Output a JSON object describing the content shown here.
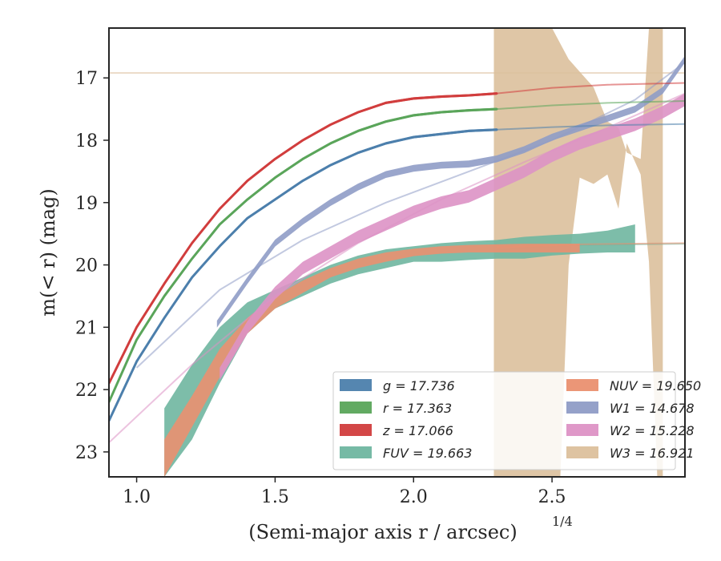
{
  "chart_data": {
    "type": "line",
    "xlabel": "(Semi-major axis r / arcsec)",
    "xlabel_power": "1/4",
    "ylabel": "m(< r) (mag)",
    "xlim": [
      0.9,
      2.98
    ],
    "ylim": [
      23.4,
      16.2
    ],
    "y_inverted": true,
    "x_ticks": [
      1.0,
      1.5,
      2.0,
      2.5
    ],
    "x_tick_labels": [
      "1.0",
      "1.5",
      "2.0",
      "2.5"
    ],
    "y_ticks": [
      17,
      18,
      19,
      20,
      21,
      22,
      23
    ],
    "y_tick_labels": [
      "17",
      "18",
      "19",
      "20",
      "21",
      "22",
      "23"
    ],
    "legend_position": "lower right",
    "series": [
      {
        "name": "g",
        "legend": "g = 17.736",
        "color": "#4c7fac",
        "lineWidth": 3,
        "bandHalf": 0.02,
        "points": [
          [
            0.9,
            22.5
          ],
          [
            1.0,
            21.55
          ],
          [
            1.1,
            20.85
          ],
          [
            1.2,
            20.2
          ],
          [
            1.3,
            19.7
          ],
          [
            1.4,
            19.25
          ],
          [
            1.5,
            18.95
          ],
          [
            1.6,
            18.65
          ],
          [
            1.7,
            18.4
          ],
          [
            1.8,
            18.2
          ],
          [
            1.9,
            18.05
          ],
          [
            2.0,
            17.95
          ],
          [
            2.1,
            17.9
          ],
          [
            2.2,
            17.85
          ],
          [
            2.3,
            17.83
          ]
        ],
        "fit": [
          [
            2.3,
            17.83
          ],
          [
            2.5,
            17.79
          ],
          [
            2.7,
            17.76
          ],
          [
            2.98,
            17.74
          ]
        ]
      },
      {
        "name": "r",
        "legend": "r = 17.363",
        "color": "#5aa55a",
        "lineWidth": 3,
        "bandHalf": 0.02,
        "points": [
          [
            0.9,
            22.2
          ],
          [
            1.0,
            21.2
          ],
          [
            1.1,
            20.5
          ],
          [
            1.2,
            19.9
          ],
          [
            1.3,
            19.35
          ],
          [
            1.4,
            18.95
          ],
          [
            1.5,
            18.6
          ],
          [
            1.6,
            18.3
          ],
          [
            1.7,
            18.05
          ],
          [
            1.8,
            17.85
          ],
          [
            1.9,
            17.7
          ],
          [
            2.0,
            17.6
          ],
          [
            2.1,
            17.55
          ],
          [
            2.2,
            17.52
          ],
          [
            2.3,
            17.5
          ]
        ],
        "fit": [
          [
            2.3,
            17.5
          ],
          [
            2.5,
            17.44
          ],
          [
            2.7,
            17.4
          ],
          [
            2.98,
            17.37
          ]
        ]
      },
      {
        "name": "z",
        "legend": "z = 17.066",
        "color": "#d13d3d",
        "lineWidth": 3,
        "bandHalf": 0.02,
        "points": [
          [
            0.9,
            21.9
          ],
          [
            1.0,
            21.0
          ],
          [
            1.1,
            20.3
          ],
          [
            1.2,
            19.65
          ],
          [
            1.3,
            19.1
          ],
          [
            1.4,
            18.65
          ],
          [
            1.5,
            18.3
          ],
          [
            1.6,
            18.0
          ],
          [
            1.7,
            17.75
          ],
          [
            1.8,
            17.55
          ],
          [
            1.9,
            17.4
          ],
          [
            2.0,
            17.33
          ],
          [
            2.1,
            17.3
          ],
          [
            2.2,
            17.28
          ],
          [
            2.3,
            17.25
          ]
        ],
        "fit": [
          [
            2.3,
            17.25
          ],
          [
            2.5,
            17.16
          ],
          [
            2.7,
            17.11
          ],
          [
            2.98,
            17.08
          ]
        ]
      },
      {
        "name": "FUV",
        "legend": "FUV = 19.663",
        "color": "#6fb6a0",
        "lineWidth": 0,
        "bandHalf": 0,
        "band": [
          [
            1.1,
            22.3,
            23.4
          ],
          [
            1.2,
            21.6,
            22.8
          ],
          [
            1.3,
            21.0,
            21.9
          ],
          [
            1.4,
            20.6,
            21.1
          ],
          [
            1.5,
            20.4,
            20.7
          ],
          [
            1.6,
            20.2,
            20.5
          ],
          [
            1.7,
            20.0,
            20.3
          ],
          [
            1.8,
            19.85,
            20.15
          ],
          [
            1.9,
            19.75,
            20.05
          ],
          [
            2.0,
            19.7,
            19.95
          ],
          [
            2.1,
            19.65,
            19.95
          ],
          [
            2.2,
            19.62,
            19.92
          ],
          [
            2.3,
            19.6,
            19.9
          ],
          [
            2.4,
            19.55,
            19.9
          ],
          [
            2.5,
            19.52,
            19.85
          ],
          [
            2.6,
            19.5,
            19.82
          ],
          [
            2.7,
            19.45,
            19.8
          ],
          [
            2.8,
            19.35,
            19.8
          ]
        ],
        "fit": [
          [
            2.3,
            19.75
          ],
          [
            2.6,
            19.68
          ],
          [
            2.98,
            19.66
          ]
        ]
      },
      {
        "name": "NUV",
        "legend": "NUV = 19.650",
        "color": "#ea9070",
        "lineWidth": 0,
        "bandHalf": 0,
        "band": [
          [
            1.1,
            22.8,
            23.4
          ],
          [
            1.2,
            22.1,
            22.6
          ],
          [
            1.3,
            21.35,
            21.8
          ],
          [
            1.4,
            20.85,
            21.1
          ],
          [
            1.5,
            20.5,
            20.7
          ],
          [
            1.6,
            20.25,
            20.45
          ],
          [
            1.7,
            20.05,
            20.2
          ],
          [
            1.8,
            19.9,
            20.05
          ],
          [
            1.9,
            19.8,
            19.95
          ],
          [
            2.0,
            19.74,
            19.86
          ],
          [
            2.1,
            19.7,
            19.82
          ],
          [
            2.2,
            19.68,
            19.8
          ],
          [
            2.3,
            19.67,
            19.8
          ],
          [
            2.4,
            19.66,
            19.8
          ],
          [
            2.5,
            19.66,
            19.8
          ],
          [
            2.6,
            19.66,
            19.8
          ]
        ],
        "fit": [
          [
            2.3,
            19.72
          ],
          [
            2.6,
            19.67
          ],
          [
            2.98,
            19.65
          ]
        ]
      },
      {
        "name": "W1",
        "legend": "W1 = 14.678",
        "color": "#8f9cc6",
        "lineWidth": 0,
        "bandHalf": 0.055,
        "points": [
          [
            1.29,
            20.95
          ],
          [
            1.4,
            20.25
          ],
          [
            1.5,
            19.65
          ],
          [
            1.6,
            19.3
          ],
          [
            1.7,
            19.0
          ],
          [
            1.8,
            18.75
          ],
          [
            1.9,
            18.55
          ],
          [
            2.0,
            18.45
          ],
          [
            2.1,
            18.4
          ],
          [
            2.2,
            18.38
          ],
          [
            2.3,
            18.3
          ],
          [
            2.4,
            18.15
          ],
          [
            2.5,
            17.95
          ],
          [
            2.6,
            17.8
          ],
          [
            2.7,
            17.65
          ],
          [
            2.8,
            17.5
          ],
          [
            2.9,
            17.2
          ],
          [
            2.98,
            16.7
          ]
        ],
        "fit": [
          [
            1.0,
            21.65
          ],
          [
            1.3,
            20.4
          ],
          [
            1.6,
            19.6
          ],
          [
            1.9,
            19.0
          ],
          [
            2.2,
            18.5
          ],
          [
            2.5,
            18.0
          ],
          [
            2.8,
            17.35
          ],
          [
            2.98,
            16.75
          ]
        ]
      },
      {
        "name": "W2",
        "legend": "W2 = 15.228",
        "color": "#dd92c5",
        "lineWidth": 0,
        "bandHalf": 0.1,
        "points": [
          [
            1.3,
            21.75
          ],
          [
            1.4,
            21.0
          ],
          [
            1.5,
            20.45
          ],
          [
            1.6,
            20.05
          ],
          [
            1.7,
            19.8
          ],
          [
            1.8,
            19.55
          ],
          [
            1.9,
            19.35
          ],
          [
            2.0,
            19.15
          ],
          [
            2.1,
            19.0
          ],
          [
            2.2,
            18.9
          ],
          [
            2.3,
            18.7
          ],
          [
            2.4,
            18.5
          ],
          [
            2.5,
            18.25
          ],
          [
            2.6,
            18.05
          ],
          [
            2.7,
            17.9
          ],
          [
            2.8,
            17.75
          ],
          [
            2.9,
            17.55
          ],
          [
            2.98,
            17.35
          ]
        ],
        "fit": [
          [
            0.9,
            22.85
          ],
          [
            1.2,
            21.6
          ],
          [
            1.5,
            20.5
          ],
          [
            1.8,
            19.65
          ],
          [
            2.1,
            18.95
          ],
          [
            2.4,
            18.35
          ],
          [
            2.7,
            17.8
          ],
          [
            2.98,
            17.25
          ]
        ]
      },
      {
        "name": "W3",
        "legend": "W3 = 16.921",
        "color": "#dcc09c",
        "lineWidth": 0,
        "bandHalf": 0,
        "band": [
          [
            2.29,
            16.2,
            23.4
          ],
          [
            2.44,
            16.2,
            23.4
          ],
          [
            2.5,
            16.2,
            23.4
          ],
          [
            2.53,
            16.45,
            23.4
          ],
          [
            2.56,
            16.7,
            20.0
          ],
          [
            2.6,
            16.9,
            18.6
          ],
          [
            2.65,
            17.15,
            18.7
          ],
          [
            2.7,
            17.7,
            18.55
          ],
          [
            2.74,
            17.8,
            19.1
          ],
          [
            2.77,
            18.2,
            18.05
          ],
          [
            2.82,
            18.3,
            18.55
          ],
          [
            2.85,
            16.2,
            19.95
          ],
          [
            2.88,
            16.2,
            23.4
          ],
          [
            2.9,
            16.2,
            23.4
          ]
        ],
        "fit": [
          [
            0.9,
            16.92
          ],
          [
            2.98,
            16.92
          ]
        ]
      }
    ]
  }
}
